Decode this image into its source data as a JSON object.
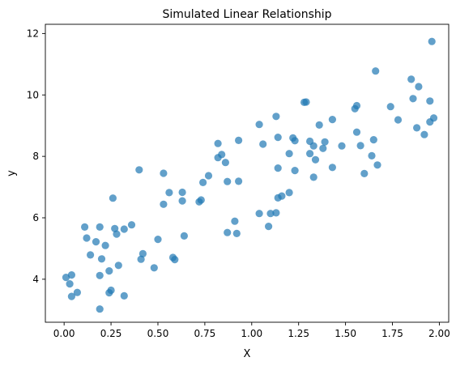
{
  "chart_data": {
    "type": "scatter",
    "title": "Simulated Linear Relationship",
    "xlabel": "X",
    "ylabel": "y",
    "xlim": [
      -0.1,
      2.05
    ],
    "ylim": [
      2.6,
      12.3
    ],
    "xticks": [
      0.0,
      0.25,
      0.5,
      0.75,
      1.0,
      1.25,
      1.5,
      1.75,
      2.0
    ],
    "xtick_labels": [
      "0.00",
      "0.25",
      "0.50",
      "0.75",
      "1.00",
      "1.25",
      "1.50",
      "1.75",
      "2.00"
    ],
    "yticks": [
      4,
      6,
      8,
      10,
      12
    ],
    "ytick_labels": [
      "4",
      "6",
      "8",
      "10",
      "12"
    ],
    "grid": false,
    "marker_color": "#1f77b4",
    "marker_alpha": 0.7,
    "points": [
      [
        0.01,
        4.06
      ],
      [
        0.03,
        3.85
      ],
      [
        0.04,
        4.14
      ],
      [
        0.04,
        3.44
      ],
      [
        0.07,
        3.57
      ],
      [
        0.11,
        5.7
      ],
      [
        0.12,
        5.34
      ],
      [
        0.14,
        4.79
      ],
      [
        0.17,
        5.22
      ],
      [
        0.19,
        5.7
      ],
      [
        0.19,
        4.12
      ],
      [
        0.2,
        4.66
      ],
      [
        0.22,
        5.1
      ],
      [
        0.19,
        3.03
      ],
      [
        0.24,
        4.27
      ],
      [
        0.24,
        3.56
      ],
      [
        0.25,
        3.64
      ],
      [
        0.26,
        6.64
      ],
      [
        0.27,
        5.65
      ],
      [
        0.28,
        5.47
      ],
      [
        0.29,
        4.45
      ],
      [
        0.32,
        5.63
      ],
      [
        0.32,
        3.46
      ],
      [
        0.36,
        5.77
      ],
      [
        0.4,
        7.56
      ],
      [
        0.41,
        4.65
      ],
      [
        0.42,
        4.83
      ],
      [
        0.48,
        4.37
      ],
      [
        0.5,
        5.3
      ],
      [
        0.53,
        7.45
      ],
      [
        0.53,
        6.44
      ],
      [
        0.56,
        6.82
      ],
      [
        0.58,
        4.71
      ],
      [
        0.59,
        4.64
      ],
      [
        0.63,
        6.55
      ],
      [
        0.63,
        6.83
      ],
      [
        0.64,
        5.41
      ],
      [
        0.72,
        6.52
      ],
      [
        0.73,
        6.58
      ],
      [
        0.74,
        7.15
      ],
      [
        0.77,
        7.37
      ],
      [
        0.82,
        7.96
      ],
      [
        0.82,
        8.42
      ],
      [
        0.84,
        8.06
      ],
      [
        0.86,
        7.8
      ],
      [
        0.87,
        5.52
      ],
      [
        0.87,
        7.18
      ],
      [
        0.91,
        5.89
      ],
      [
        0.92,
        5.49
      ],
      [
        0.93,
        8.52
      ],
      [
        0.93,
        7.19
      ],
      [
        1.04,
        9.04
      ],
      [
        1.04,
        6.14
      ],
      [
        1.06,
        8.4
      ],
      [
        1.09,
        5.72
      ],
      [
        1.1,
        6.14
      ],
      [
        1.13,
        6.16
      ],
      [
        1.13,
        9.3
      ],
      [
        1.14,
        8.62
      ],
      [
        1.14,
        7.62
      ],
      [
        1.14,
        6.65
      ],
      [
        1.16,
        6.71
      ],
      [
        1.2,
        6.82
      ],
      [
        1.2,
        8.09
      ],
      [
        1.22,
        8.6
      ],
      [
        1.23,
        8.51
      ],
      [
        1.23,
        7.54
      ],
      [
        1.28,
        9.76
      ],
      [
        1.29,
        9.77
      ],
      [
        1.31,
        8.49
      ],
      [
        1.31,
        8.09
      ],
      [
        1.33,
        8.34
      ],
      [
        1.33,
        7.32
      ],
      [
        1.34,
        7.89
      ],
      [
        1.36,
        9.02
      ],
      [
        1.38,
        8.26
      ],
      [
        1.39,
        8.47
      ],
      [
        1.43,
        9.2
      ],
      [
        1.43,
        7.64
      ],
      [
        1.48,
        8.34
      ],
      [
        1.55,
        9.55
      ],
      [
        1.56,
        9.65
      ],
      [
        1.56,
        8.79
      ],
      [
        1.58,
        8.35
      ],
      [
        1.6,
        7.44
      ],
      [
        1.64,
        8.02
      ],
      [
        1.65,
        8.54
      ],
      [
        1.66,
        10.78
      ],
      [
        1.67,
        7.72
      ],
      [
        1.74,
        9.62
      ],
      [
        1.78,
        9.19
      ],
      [
        1.85,
        10.51
      ],
      [
        1.86,
        9.88
      ],
      [
        1.88,
        8.93
      ],
      [
        1.89,
        10.27
      ],
      [
        1.92,
        8.71
      ],
      [
        1.95,
        9.12
      ],
      [
        1.95,
        9.8
      ],
      [
        1.96,
        11.74
      ],
      [
        1.97,
        9.25
      ]
    ]
  }
}
